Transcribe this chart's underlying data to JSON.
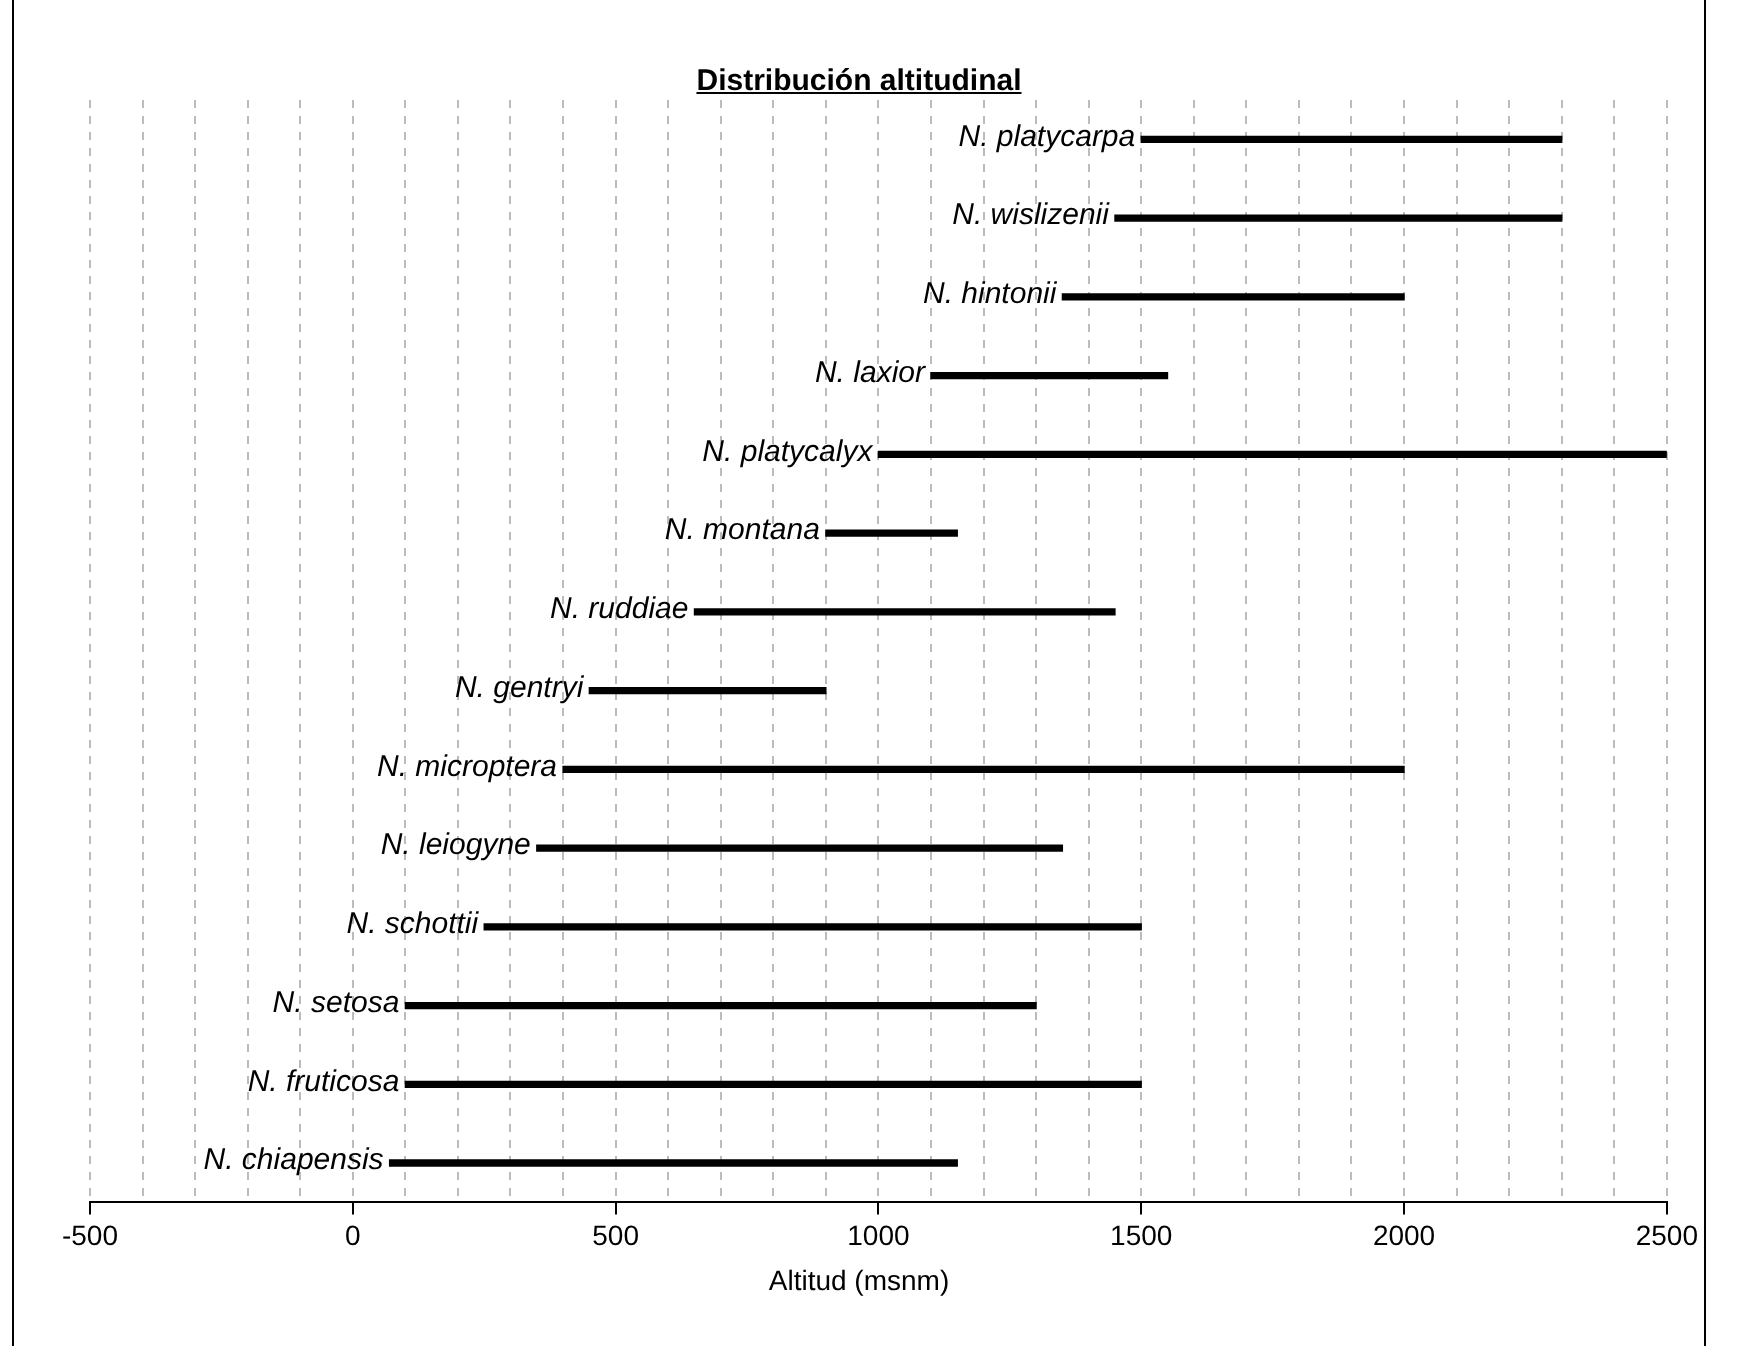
{
  "chart_data": {
    "type": "bar",
    "orientation": "horizontal",
    "title": "Distribución altitudinal",
    "xlabel": "Altitud (msnm)",
    "categories": [
      "N. platycarpa",
      "N. wislizenii",
      "N. hintonii",
      "N. laxior",
      "N. platycalyx",
      "N. montana",
      "N. ruddiae",
      "N. gentryi",
      "N. microptera",
      "N. leiogyne",
      "N. schottii",
      "N. setosa",
      "N. fruticosa",
      "N. chiapensis"
    ],
    "base": [
      1500,
      1450,
      1350,
      1100,
      1000,
      900,
      650,
      450,
      400,
      350,
      250,
      100,
      100,
      70
    ],
    "values": [
      800,
      850,
      650,
      450,
      1500,
      250,
      800,
      450,
      1600,
      1000,
      1250,
      1200,
      1400,
      1080
    ],
    "color": "#000000",
    "xlim": [
      -500,
      2500
    ],
    "xticks": [
      -500,
      {
        "value": -400,
        "label": null
      },
      {
        "value": -300,
        "label": null
      },
      {
        "value": -200,
        "label": null
      },
      {
        "value": -100,
        "label": null
      },
      0,
      {
        "value": 100,
        "label": null
      },
      {
        "value": 200,
        "label": null
      },
      {
        "value": 300,
        "label": null
      },
      {
        "value": 400,
        "label": null
      },
      500,
      {
        "value": 600,
        "label": null
      },
      {
        "value": 700,
        "label": null
      },
      {
        "value": 800,
        "label": null
      },
      {
        "value": 900,
        "label": null
      },
      1000,
      {
        "value": 1100,
        "label": null
      },
      {
        "value": 1200,
        "label": null
      },
      {
        "value": 1300,
        "label": null
      },
      {
        "value": 1400,
        "label": null
      },
      1500,
      {
        "value": 1600,
        "label": null
      },
      {
        "value": 1700,
        "label": null
      },
      {
        "value": 1800,
        "label": null
      },
      {
        "value": 1900,
        "label": null
      },
      2000,
      {
        "value": 2100,
        "label": null
      },
      {
        "value": 2200,
        "label": null
      },
      {
        "value": 2300,
        "label": null
      },
      {
        "value": 2400,
        "label": null
      },
      2500
    ],
    "grid": "x",
    "legend": false
  }
}
